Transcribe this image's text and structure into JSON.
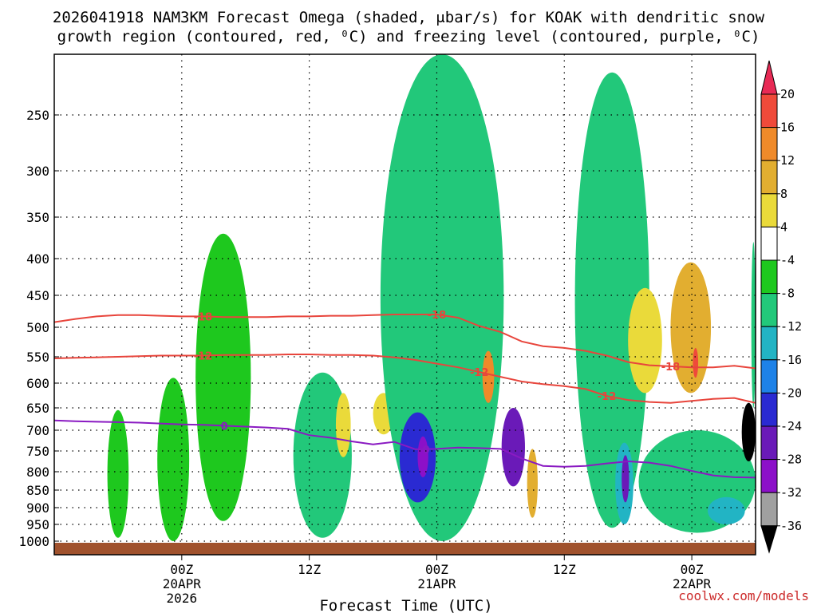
{
  "chart_data": {
    "type": "time-height cross section",
    "title_line1": "2026041918 NAM3KM Forecast Omega (shaded, μbar/s) for KOAK with dendritic snow",
    "title_line2": "growth region (contoured, red, ⁰C) and freezing level (contoured, purple, ⁰C)",
    "xlabel": "Forecast Time (UTC)",
    "credit": "coolwx.com/models",
    "y_axis": {
      "unit": "hPa",
      "range": [
        1000,
        200
      ],
      "ticks": [
        "250",
        "300",
        "350",
        "400",
        "450",
        "500",
        "550",
        "600",
        "650",
        "700",
        "750",
        "800",
        "850",
        "900",
        "950",
        "1000"
      ]
    },
    "x_axis": {
      "unit": "forecast hour",
      "range": [
        -6,
        60
      ],
      "ticks": [
        {
          "hour": 6,
          "top": "00Z",
          "mid": "20APR",
          "bot": "2026"
        },
        {
          "hour": 18,
          "top": "12Z",
          "mid": "",
          "bot": ""
        },
        {
          "hour": 30,
          "top": "00Z",
          "mid": "21APR",
          "bot": ""
        },
        {
          "hour": 42,
          "top": "12Z",
          "mid": "",
          "bot": ""
        },
        {
          "hour": 54,
          "top": "00Z",
          "mid": "22APR",
          "bot": ""
        }
      ]
    },
    "colorbar": {
      "labels": [
        "20",
        "16",
        "12",
        "8",
        "4",
        "-4",
        "-8",
        "-12",
        "-16",
        "-20",
        "-24",
        "-28",
        "-32",
        "-36"
      ],
      "colors": [
        "#e82a55",
        "#ef4a3a",
        "#ef8a2a",
        "#e2ae30",
        "#eada3a",
        "#ffffff",
        "#1ec81e",
        "#22c87a",
        "#22b4c4",
        "#1e82e8",
        "#2a2ad2",
        "#6a1ab8",
        "#8c10c8",
        "#a0a0a0",
        "#000000"
      ]
    },
    "contours": [
      {
        "name": "dendritic-top",
        "label": "-18",
        "color": "#e8453c",
        "x": [
          -6,
          -4,
          -2,
          0,
          2,
          4,
          6,
          8,
          10,
          12,
          14,
          16,
          18,
          20,
          22,
          24,
          26,
          28,
          30,
          32,
          34,
          36,
          38,
          40,
          42,
          44,
          46,
          48,
          50,
          52,
          54,
          56,
          58,
          60
        ],
        "p": [
          492,
          487,
          483,
          481,
          481,
          482,
          483,
          483,
          484,
          484,
          484,
          483,
          483,
          482,
          482,
          481,
          480,
          480,
          480,
          485,
          498,
          508,
          524,
          532,
          535,
          540,
          548,
          560,
          566,
          568,
          570,
          570,
          567,
          572
        ],
        "label_at": [
          {
            "x": 8,
            "p": 483
          },
          {
            "x": 30,
            "p": 480
          },
          {
            "x": 52,
            "p": 568
          }
        ]
      },
      {
        "name": "dendritic-bottom",
        "label": "-12",
        "color": "#e8453c",
        "x": [
          -6,
          -4,
          -2,
          0,
          2,
          4,
          6,
          8,
          10,
          12,
          14,
          16,
          18,
          20,
          22,
          24,
          26,
          28,
          30,
          32,
          34,
          36,
          38,
          40,
          42,
          44,
          46,
          48,
          50,
          52,
          54,
          56,
          58,
          60
        ],
        "p": [
          553,
          552,
          551,
          550,
          549,
          548,
          548,
          548,
          547,
          547,
          547,
          546,
          546,
          547,
          547,
          548,
          551,
          556,
          563,
          570,
          579,
          588,
          597,
          602,
          606,
          612,
          626,
          634,
          638,
          640,
          636,
          632,
          630,
          640
        ],
        "label_at": [
          {
            "x": 8,
            "p": 548
          },
          {
            "x": 34,
            "p": 579
          },
          {
            "x": 46,
            "p": 626
          }
        ]
      },
      {
        "name": "freezing-level",
        "label": "0",
        "color": "#8a1ac2",
        "x": [
          -6,
          -4,
          -2,
          0,
          2,
          4,
          6,
          8,
          10,
          12,
          14,
          16,
          18,
          20,
          22,
          24,
          26,
          28,
          30,
          32,
          34,
          36,
          38,
          40,
          42,
          44,
          46,
          48,
          50,
          52,
          54,
          56,
          58,
          60
        ],
        "p": [
          678,
          680,
          681,
          682,
          683,
          685,
          687,
          688,
          690,
          692,
          694,
          697,
          712,
          718,
          727,
          734,
          728,
          746,
          745,
          742,
          743,
          745,
          768,
          786,
          788,
          786,
          780,
          775,
          778,
          786,
          798,
          810,
          815,
          816
        ],
        "label_at": [
          {
            "x": 10,
            "p": 690
          },
          {
            "x": 29,
            "p": 746
          }
        ]
      }
    ],
    "shaded_regions": [
      {
        "value": -6,
        "x": [
          3.7,
          6.7
        ],
        "p": [
          1000,
          590
        ]
      },
      {
        "value": -6,
        "x": [
          7.3,
          12.5
        ],
        "p": [
          940,
          370
        ]
      },
      {
        "value": -6,
        "x": [
          -1,
          1
        ],
        "p": [
          990,
          655
        ]
      },
      {
        "value": -8,
        "x": [
          16.5,
          22
        ],
        "p": [
          990,
          580
        ]
      },
      {
        "value": 8,
        "x": [
          20.5,
          21.9
        ],
        "p": [
          765,
          620
        ]
      },
      {
        "value": 6,
        "x": [
          24,
          26
        ],
        "p": [
          710,
          620
        ]
      },
      {
        "value": -8,
        "x": [
          24.7,
          36.3
        ],
        "p": [
          1000,
          200
        ]
      },
      {
        "value": -20,
        "x": [
          26.5,
          29.9
        ],
        "p": [
          885,
          660
        ]
      },
      {
        "value": -28,
        "x": [
          28.2,
          29.2
        ],
        "p": [
          815,
          715
        ]
      },
      {
        "value": 16,
        "x": [
          34.3,
          35.4
        ],
        "p": [
          640,
          540
        ]
      },
      {
        "value": -24,
        "x": [
          36.1,
          38.3
        ],
        "p": [
          840,
          650
        ]
      },
      {
        "value": 10,
        "x": [
          38.5,
          39.5
        ],
        "p": [
          930,
          745
        ]
      },
      {
        "value": -8,
        "x": [
          43,
          50
        ],
        "p": [
          960,
          215
        ]
      },
      {
        "value": -12,
        "x": [
          46.8,
          48.5
        ],
        "p": [
          950,
          730
        ]
      },
      {
        "value": -24,
        "x": [
          47.4,
          48.1
        ],
        "p": [
          885,
          760
        ]
      },
      {
        "value": 8,
        "x": [
          48,
          51.2
        ],
        "p": [
          620,
          440
        ]
      },
      {
        "value": 12,
        "x": [
          52,
          55.8
        ],
        "p": [
          620,
          405
        ]
      },
      {
        "value": 20,
        "x": [
          54.1,
          54.6
        ],
        "p": [
          590,
          535
        ]
      },
      {
        "value": -8,
        "x": [
          49,
          60
        ],
        "p": [
          975,
          700
        ]
      },
      {
        "value": -14,
        "x": [
          55.5,
          59
        ],
        "p": [
          950,
          870
        ]
      },
      {
        "value": -36,
        "x": [
          58.7,
          60
        ],
        "p": [
          775,
          640
        ]
      },
      {
        "value": -8,
        "x": [
          59.6,
          60
        ],
        "p": [
          650,
          380
        ]
      }
    ]
  }
}
